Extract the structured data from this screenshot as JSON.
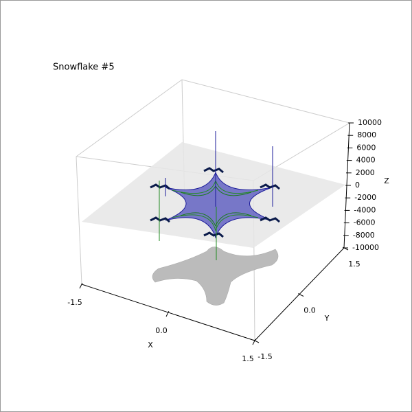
{
  "chart_data": {
    "type": "surface3d",
    "title": "Snowflake #5",
    "xlabel": "X",
    "ylabel": "Y",
    "zlabel": "Z",
    "xlim": [
      -1.5,
      1.5
    ],
    "ylim": [
      -1.5,
      1.5
    ],
    "zlim": [
      -10000,
      10000
    ],
    "xticks": [
      -1.5,
      {
        "value": 0,
        "label": "0.0"
      },
      1.5
    ],
    "yticks": [
      -1.5,
      {
        "value": 0,
        "label": "0.0"
      },
      1.5
    ],
    "zticks": [
      -10000,
      -8000,
      -6000,
      -4000,
      -2000,
      0,
      2000,
      4000,
      6000,
      8000,
      10000
    ]
  }
}
